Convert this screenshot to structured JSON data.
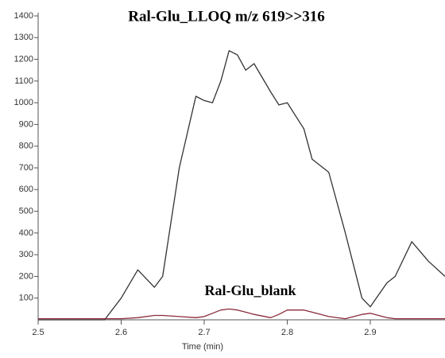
{
  "chart_data": {
    "type": "line",
    "title": "Ral-Glu_LLOQ  m/z 619>>316",
    "annotation": "Ral-Glu_blank",
    "x_label": "Time (min)",
    "x": [
      2.5,
      2.55,
      2.58,
      2.6,
      2.62,
      2.64,
      2.65,
      2.67,
      2.69,
      2.7,
      2.71,
      2.72,
      2.73,
      2.74,
      2.75,
      2.76,
      2.78,
      2.79,
      2.8,
      2.82,
      2.83,
      2.85,
      2.87,
      2.89,
      2.9,
      2.92,
      2.93,
      2.95,
      2.97,
      2.99
    ],
    "series": [
      {
        "name": "Ral-Glu_LLOQ",
        "color": "#333333",
        "values": [
          0,
          0,
          0,
          100,
          230,
          150,
          200,
          700,
          1030,
          1010,
          1000,
          1100,
          1240,
          1220,
          1150,
          1180,
          1050,
          990,
          1000,
          880,
          740,
          680,
          400,
          100,
          60,
          170,
          200,
          360,
          270,
          200
        ]
      },
      {
        "name": "Ral-Glu_blank",
        "color": "#8b2b3a",
        "values": [
          5,
          5,
          5,
          5,
          10,
          20,
          20,
          15,
          10,
          15,
          30,
          45,
          50,
          45,
          35,
          25,
          10,
          25,
          45,
          45,
          35,
          15,
          5,
          25,
          30,
          10,
          5,
          5,
          5,
          5
        ]
      }
    ],
    "xlim": [
      2.5,
      2.99
    ],
    "xticks": [
      2.5,
      2.6,
      2.7,
      2.8,
      2.9
    ],
    "ylim": [
      0,
      1400
    ],
    "yticks": [
      100,
      200,
      300,
      400,
      500,
      600,
      700,
      800,
      900,
      1000,
      1100,
      1200,
      1300,
      1400
    ]
  }
}
